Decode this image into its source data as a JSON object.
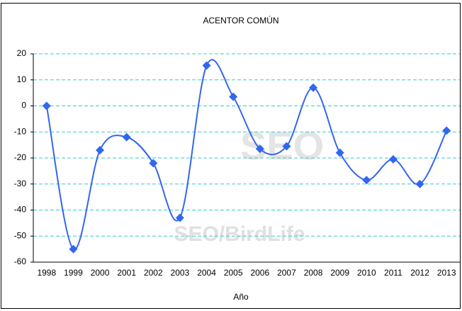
{
  "chart_data": {
    "type": "line",
    "title": "ACENTOR COMÚN",
    "x_label": "Año",
    "categories": [
      "1998",
      "1999",
      "2000",
      "2001",
      "2002",
      "2003",
      "2004",
      "2005",
      "2006",
      "2007",
      "2008",
      "2009",
      "2010",
      "2011",
      "2012",
      "2013"
    ],
    "series": [
      {
        "name": "ACENTOR COMÚN",
        "color": "#3366ee",
        "values": [
          0,
          -55,
          -17,
          -12,
          -22,
          -43,
          15.5,
          3.5,
          -16.5,
          -15.5,
          7,
          -18,
          -28.5,
          -20.5,
          -30,
          -9.5
        ]
      }
    ],
    "ylim": [
      -60,
      20
    ],
    "yticks": [
      -60,
      -50,
      -40,
      -30,
      -20,
      -10,
      0,
      10,
      20
    ],
    "grid": true,
    "watermark": [
      "SEO",
      "SEO/BirdLife"
    ]
  }
}
